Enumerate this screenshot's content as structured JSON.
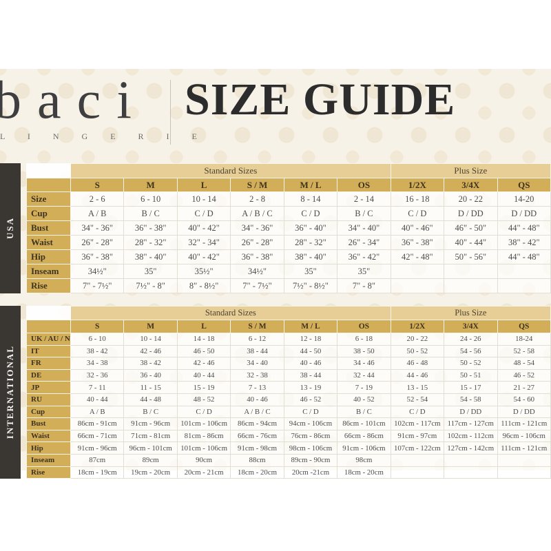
{
  "header": {
    "brand": "baci",
    "brand_sub": "L I N G E R I E",
    "title": "SIZE GUIDE"
  },
  "colors": {
    "gold_header": "#d2ae58",
    "gold_band": "#e7ce97",
    "sidebar_dark": "#3a3631",
    "pattern_cream": "#f7f2e8",
    "text_dark": "#2c2c2c"
  },
  "tables": [
    {
      "region_label": "USA",
      "group_headers": [
        {
          "label": "Standard Sizes",
          "span": 6
        },
        {
          "label": "Plus Size",
          "span": 3
        }
      ],
      "columns": [
        "S",
        "M",
        "L",
        "S / M",
        "M / L",
        "OS",
        "1/2X",
        "3/4X",
        "QS"
      ],
      "rows": [
        {
          "label": "Size",
          "values": [
            "2 - 6",
            "6 - 10",
            "10 - 14",
            "2 - 8",
            "8 - 14",
            "2 - 14",
            "16 - 18",
            "20 - 22",
            "14-20"
          ]
        },
        {
          "label": "Cup",
          "values": [
            "A / B",
            "B / C",
            "C / D",
            "A / B / C",
            "C / D",
            "B / C",
            "C / D",
            "D / DD",
            "D / DD"
          ]
        },
        {
          "label": "Bust",
          "values": [
            "34\" - 36\"",
            "36\" - 38\"",
            "40\" - 42\"",
            "34\" - 36\"",
            "36\" - 40\"",
            "34\" - 40\"",
            "40\" - 46\"",
            "46\" - 50\"",
            "44\" - 48\""
          ]
        },
        {
          "label": "Waist",
          "values": [
            "26\" - 28\"",
            "28\" - 32\"",
            "32\" - 34\"",
            "26\" - 28\"",
            "28\" - 32\"",
            "26\" - 34\"",
            "36\" - 38\"",
            "40\" - 44\"",
            "38\" - 42\""
          ]
        },
        {
          "label": "Hip",
          "values": [
            "36\" - 38\"",
            "38\" - 40\"",
            "40\" - 42\"",
            "36\" - 38\"",
            "38\" - 40\"",
            "36\" - 42\"",
            "42\" - 48\"",
            "50\" - 56\"",
            "44\" - 48\""
          ]
        },
        {
          "label": "Inseam",
          "values": [
            "34½\"",
            "35\"",
            "35½\"",
            "34½\"",
            "35\"",
            "35\"",
            "",
            "",
            ""
          ]
        },
        {
          "label": "Rise",
          "values": [
            "7\" - 7½\"",
            "7½\" - 8\"",
            "8\" - 8½\"",
            "7\" - 7½\"",
            "7½\" - 8½\"",
            "7\" - 8\"",
            "",
            "",
            ""
          ]
        }
      ]
    },
    {
      "region_label": "INTERNATIONAL",
      "group_headers": [
        {
          "label": "Standard Sizes",
          "span": 6
        },
        {
          "label": "Plus Size",
          "span": 3
        }
      ],
      "columns": [
        "S",
        "M",
        "L",
        "S / M",
        "M / L",
        "OS",
        "1/2X",
        "3/4X",
        "QS"
      ],
      "rows": [
        {
          "label": "UK / AU / NZ",
          "values": [
            "6 - 10",
            "10 - 14",
            "14 - 18",
            "6 - 12",
            "12 - 18",
            "6 - 18",
            "20 - 22",
            "24 - 26",
            "18-24"
          ]
        },
        {
          "label": "IT",
          "values": [
            "38 - 42",
            "42 - 46",
            "46 - 50",
            "38 - 44",
            "44 - 50",
            "38 - 50",
            "50 - 52",
            "54 - 56",
            "52 - 58"
          ]
        },
        {
          "label": "FR",
          "values": [
            "34 - 38",
            "38 - 42",
            "42 - 46",
            "34 - 40",
            "40 - 46",
            "34 - 46",
            "46 - 48",
            "50 - 52",
            "48 - 54"
          ]
        },
        {
          "label": "DE",
          "values": [
            "32 - 36",
            "36 - 40",
            "40 - 44",
            "32 - 38",
            "38 - 44",
            "32 - 44",
            "44 - 46",
            "50 - 51",
            "46 - 52"
          ]
        },
        {
          "label": "JP",
          "values": [
            "7 - 11",
            "11 - 15",
            "15 - 19",
            "7 - 13",
            "13 - 19",
            "7 - 19",
            "13 - 15",
            "15 - 17",
            "21 - 27"
          ]
        },
        {
          "label": "RU",
          "values": [
            "40 - 44",
            "44 - 48",
            "48 - 52",
            "40 - 46",
            "46 - 52",
            "40 - 52",
            "52 - 54",
            "54 - 58",
            "54 - 60"
          ]
        },
        {
          "label": "Cup",
          "values": [
            "A / B",
            "B / C",
            "C / D",
            "A / B / C",
            "C / D",
            "B / C",
            "C / D",
            "D / DD",
            "D / DD"
          ]
        },
        {
          "label": "Bust",
          "values": [
            "86cm - 91cm",
            "91cm - 96cm",
            "101cm - 106cm",
            "86cm - 94cm",
            "94cm - 106cm",
            "86cm - 101cm",
            "102cm - 117cm",
            "117cm - 127cm",
            "111cm - 121cm"
          ]
        },
        {
          "label": "Waist",
          "values": [
            "66cm - 71cm",
            "71cm - 81cm",
            "81cm - 86cm",
            "66cm - 76cm",
            "76cm - 86cm",
            "66cm - 86cm",
            "91cm - 97cm",
            "102cm - 112cm",
            "96cm - 106cm"
          ]
        },
        {
          "label": "Hip",
          "values": [
            "91cm - 96cm",
            "96cm - 101cm",
            "101cm - 106cm",
            "91cm - 98cm",
            "98cm - 106cm",
            "91cm - 106cm",
            "107cm - 122cm",
            "127cm - 142cm",
            "111cm - 121cm"
          ]
        },
        {
          "label": "Inseam",
          "values": [
            "87cm",
            "89cm",
            "90cm",
            "88cm",
            "89cm - 90cm",
            "98cm",
            "",
            "",
            ""
          ]
        },
        {
          "label": "Rise",
          "values": [
            "18cm - 19cm",
            "19cm - 20cm",
            "20cm - 21cm",
            "18cm - 20cm",
            "20cm -21cm",
            "18cm - 20cm",
            "",
            "",
            ""
          ]
        }
      ]
    }
  ]
}
